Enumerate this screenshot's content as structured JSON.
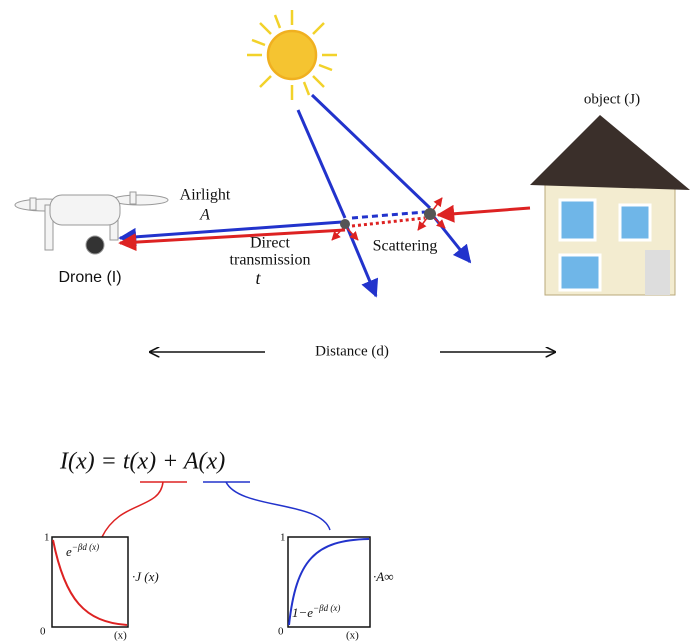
{
  "labels": {
    "object": "object (J)",
    "airlight": "Airlight",
    "airlight_symbol": "A",
    "direct": "Direct",
    "transmission": "transmission",
    "transmission_symbol": "t",
    "drone": "Drone (I)",
    "scattering": "Scattering",
    "distance": "Distance (d)"
  },
  "equation": "I(x) = t(x) + A(x)",
  "graphs": [
    {
      "y_top": "1",
      "y_bottom": "0",
      "x_label": "(x)",
      "curve_base": "e",
      "curve_exponent": "−βd (x)",
      "factor": "·J (x)"
    },
    {
      "y_top": "1",
      "y_bottom": "0",
      "x_label": "(x)",
      "curve_base": "1−e",
      "curve_exponent": "−βd (x)",
      "factor": "·A∞"
    }
  ]
}
